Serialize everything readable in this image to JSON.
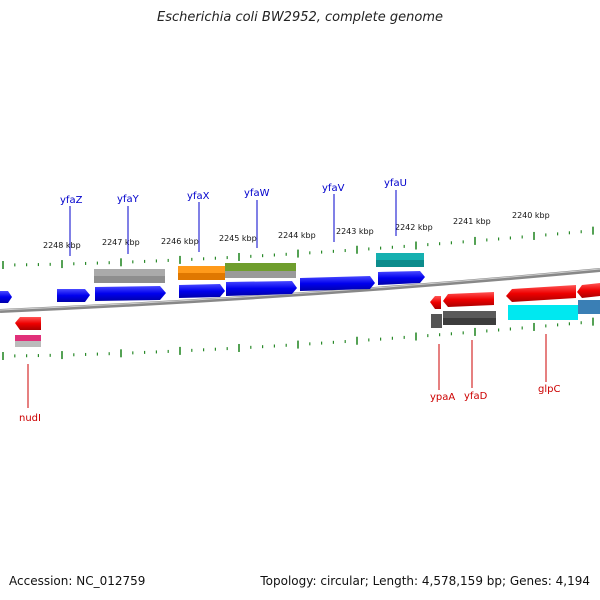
{
  "title": "Escherichia coli BW2952, complete genome",
  "footer": {
    "accession": "Accession: NC_012759",
    "summary": "Topology: circular; Length: 4,578,159 bp; Genes: 4,194"
  },
  "colors": {
    "top_gene_label": "#0000cc",
    "bottom_gene_label": "#cc0000",
    "tick": "#2a8a2a",
    "backbone": "#888888"
  },
  "kbp_labels": [
    "2248 kbp",
    "2247 kbp",
    "2246 kbp",
    "2245 kbp",
    "2244 kbp",
    "2243 kbp",
    "2242 kbp",
    "2241 kbp",
    "2240 kbp"
  ],
  "top_gene_labels": [
    "yfaZ",
    "yfaY",
    "yfaX",
    "yfaW",
    "yfaV",
    "yfaU"
  ],
  "bottom_gene_labels": [
    "nudI",
    "ypaA",
    "yfaD",
    "glpC"
  ]
}
